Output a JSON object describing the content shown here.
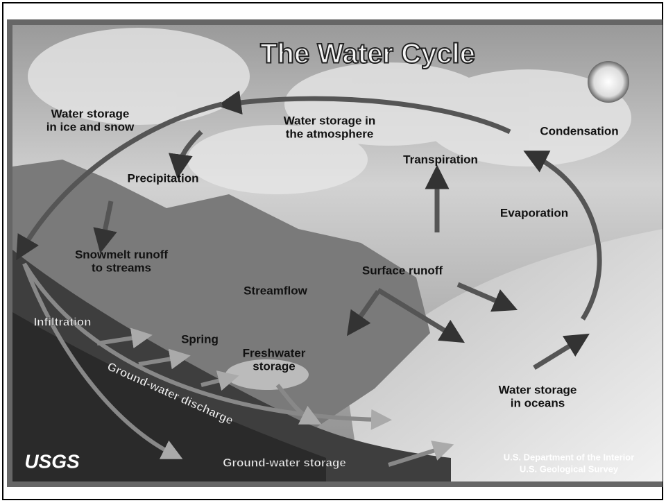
{
  "title": "The Water Cycle",
  "labels": [
    {
      "lines": [
        "Water storage",
        "in ice and snow"
      ]
    },
    {
      "lines": [
        "Water storage in",
        "the atmosphere"
      ]
    },
    {
      "lines": [
        "Condensation"
      ]
    },
    {
      "lines": [
        "Transpiration"
      ]
    },
    {
      "lines": [
        "Precipitation"
      ]
    },
    {
      "lines": [
        "Evaporation"
      ]
    },
    {
      "lines": [
        "Snowmelt runoff",
        "to streams"
      ]
    },
    {
      "lines": [
        "Surface runoff"
      ]
    },
    {
      "lines": [
        "Streamflow"
      ]
    },
    {
      "lines": [
        "Infiltration"
      ]
    },
    {
      "lines": [
        "Spring"
      ]
    },
    {
      "lines": [
        "Freshwater",
        "storage"
      ]
    },
    {
      "lines": [
        "Ground-water discharge"
      ]
    },
    {
      "lines": [
        "Water storage",
        "in oceans"
      ]
    },
    {
      "lines": [
        "Ground-water storage"
      ]
    }
  ],
  "logo": "USGS",
  "credit": [
    "U.S. Department of the Interior",
    "U.S. Geological Survey"
  ]
}
